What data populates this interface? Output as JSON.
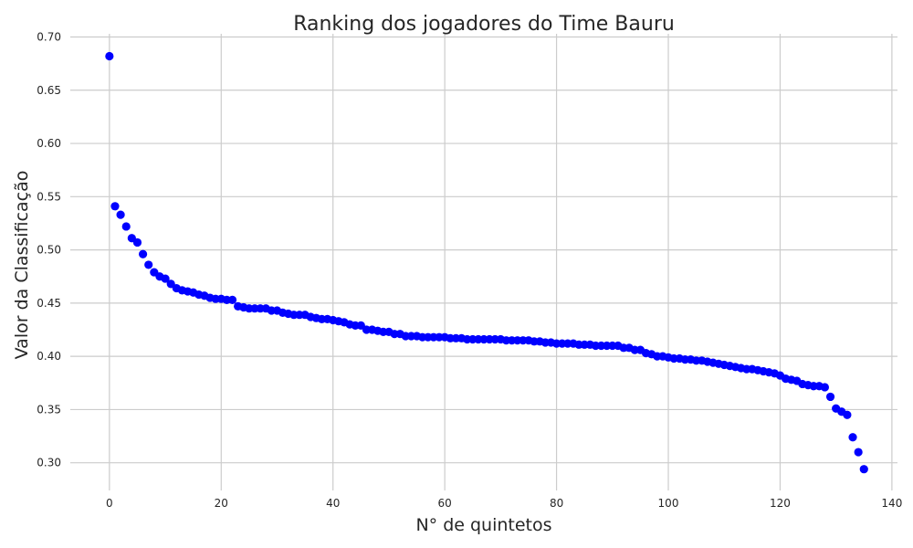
{
  "chart_data": {
    "type": "scatter",
    "title": "Ranking dos jogadores do Time Bauru",
    "xlabel": "N° de quintetos",
    "ylabel": "Valor da Classificação",
    "xlim": [
      -7,
      141
    ],
    "ylim": [
      0.274,
      0.703
    ],
    "xticks": [
      0,
      20,
      40,
      60,
      80,
      100,
      120,
      140
    ],
    "yticks": [
      0.3,
      0.35,
      0.4,
      0.45,
      0.5,
      0.55,
      0.6,
      0.65,
      0.7
    ],
    "grid": true,
    "marker_color": "#0000ff",
    "series": [
      {
        "x": [
          0,
          1,
          2,
          3,
          4,
          5,
          6,
          7,
          8,
          9,
          10,
          11,
          12,
          13,
          14,
          15,
          16,
          17,
          18,
          19,
          20,
          21,
          22,
          23,
          24,
          25,
          26,
          27,
          28,
          29,
          30,
          31,
          32,
          33,
          34,
          35,
          36,
          37,
          38,
          39,
          40,
          41,
          42,
          43,
          44,
          45,
          46,
          47,
          48,
          49,
          50,
          51,
          52,
          53,
          54,
          55,
          56,
          57,
          58,
          59,
          60,
          61,
          62,
          63,
          64,
          65,
          66,
          67,
          68,
          69,
          70,
          71,
          72,
          73,
          74,
          75,
          76,
          77,
          78,
          79,
          80,
          81,
          82,
          83,
          84,
          85,
          86,
          87,
          88,
          89,
          90,
          91,
          92,
          93,
          94,
          95,
          96,
          97,
          98,
          99,
          100,
          101,
          102,
          103,
          104,
          105,
          106,
          107,
          108,
          109,
          110,
          111,
          112,
          113,
          114,
          115,
          116,
          117,
          118,
          119,
          120,
          121,
          122,
          123,
          124,
          125,
          126,
          127,
          128,
          129,
          130,
          131,
          132,
          133,
          134,
          135
        ],
        "y": [
          0.682,
          0.541,
          0.533,
          0.522,
          0.511,
          0.507,
          0.496,
          0.486,
          0.479,
          0.475,
          0.473,
          0.468,
          0.464,
          0.462,
          0.461,
          0.46,
          0.458,
          0.457,
          0.455,
          0.454,
          0.454,
          0.453,
          0.453,
          0.447,
          0.446,
          0.445,
          0.445,
          0.445,
          0.445,
          0.443,
          0.443,
          0.441,
          0.44,
          0.439,
          0.439,
          0.439,
          0.437,
          0.436,
          0.435,
          0.435,
          0.434,
          0.433,
          0.432,
          0.43,
          0.429,
          0.429,
          0.425,
          0.425,
          0.424,
          0.423,
          0.423,
          0.421,
          0.421,
          0.419,
          0.419,
          0.419,
          0.418,
          0.418,
          0.418,
          0.418,
          0.418,
          0.417,
          0.417,
          0.417,
          0.416,
          0.416,
          0.416,
          0.416,
          0.416,
          0.416,
          0.416,
          0.415,
          0.415,
          0.415,
          0.415,
          0.415,
          0.414,
          0.414,
          0.413,
          0.413,
          0.412,
          0.412,
          0.412,
          0.412,
          0.411,
          0.411,
          0.411,
          0.41,
          0.41,
          0.41,
          0.41,
          0.41,
          0.408,
          0.408,
          0.406,
          0.406,
          0.403,
          0.402,
          0.4,
          0.4,
          0.399,
          0.398,
          0.398,
          0.397,
          0.397,
          0.396,
          0.396,
          0.395,
          0.394,
          0.393,
          0.392,
          0.391,
          0.39,
          0.389,
          0.388,
          0.388,
          0.387,
          0.386,
          0.385,
          0.384,
          0.382,
          0.379,
          0.378,
          0.377,
          0.374,
          0.373,
          0.372,
          0.372,
          0.371,
          0.362,
          0.351,
          0.348,
          0.345,
          0.324,
          0.31,
          0.294
        ]
      }
    ]
  }
}
